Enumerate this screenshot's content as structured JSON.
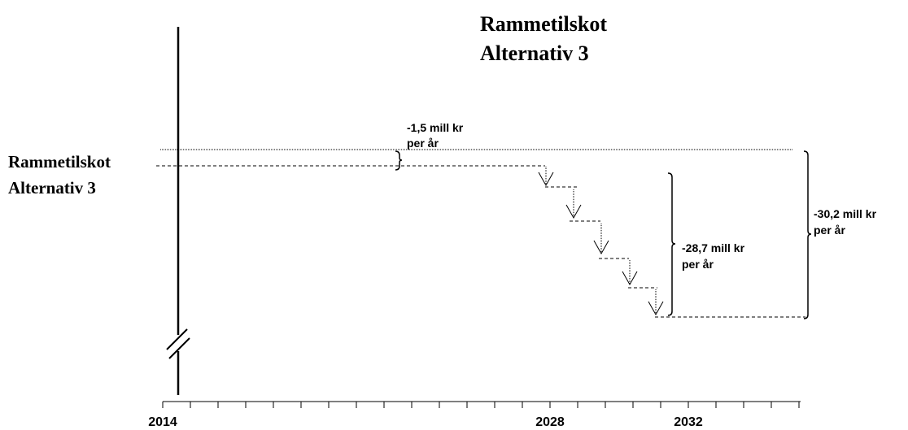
{
  "title": {
    "lines": [
      "Rammetilskot",
      "Alternativ 3"
    ]
  },
  "level_label": {
    "lines": [
      "Rammetilskot",
      "Alternativ 3"
    ]
  },
  "annotations": [
    {
      "lines": [
        "-1,5 mill kr",
        "per år"
      ]
    },
    {
      "lines": [
        "-28,7 mill kr",
        "per år"
      ]
    },
    {
      "lines": [
        "-30,2 mill kr",
        "per år"
      ]
    }
  ],
  "axis": {
    "labels": [
      "2014",
      "2028",
      "2032"
    ]
  }
}
